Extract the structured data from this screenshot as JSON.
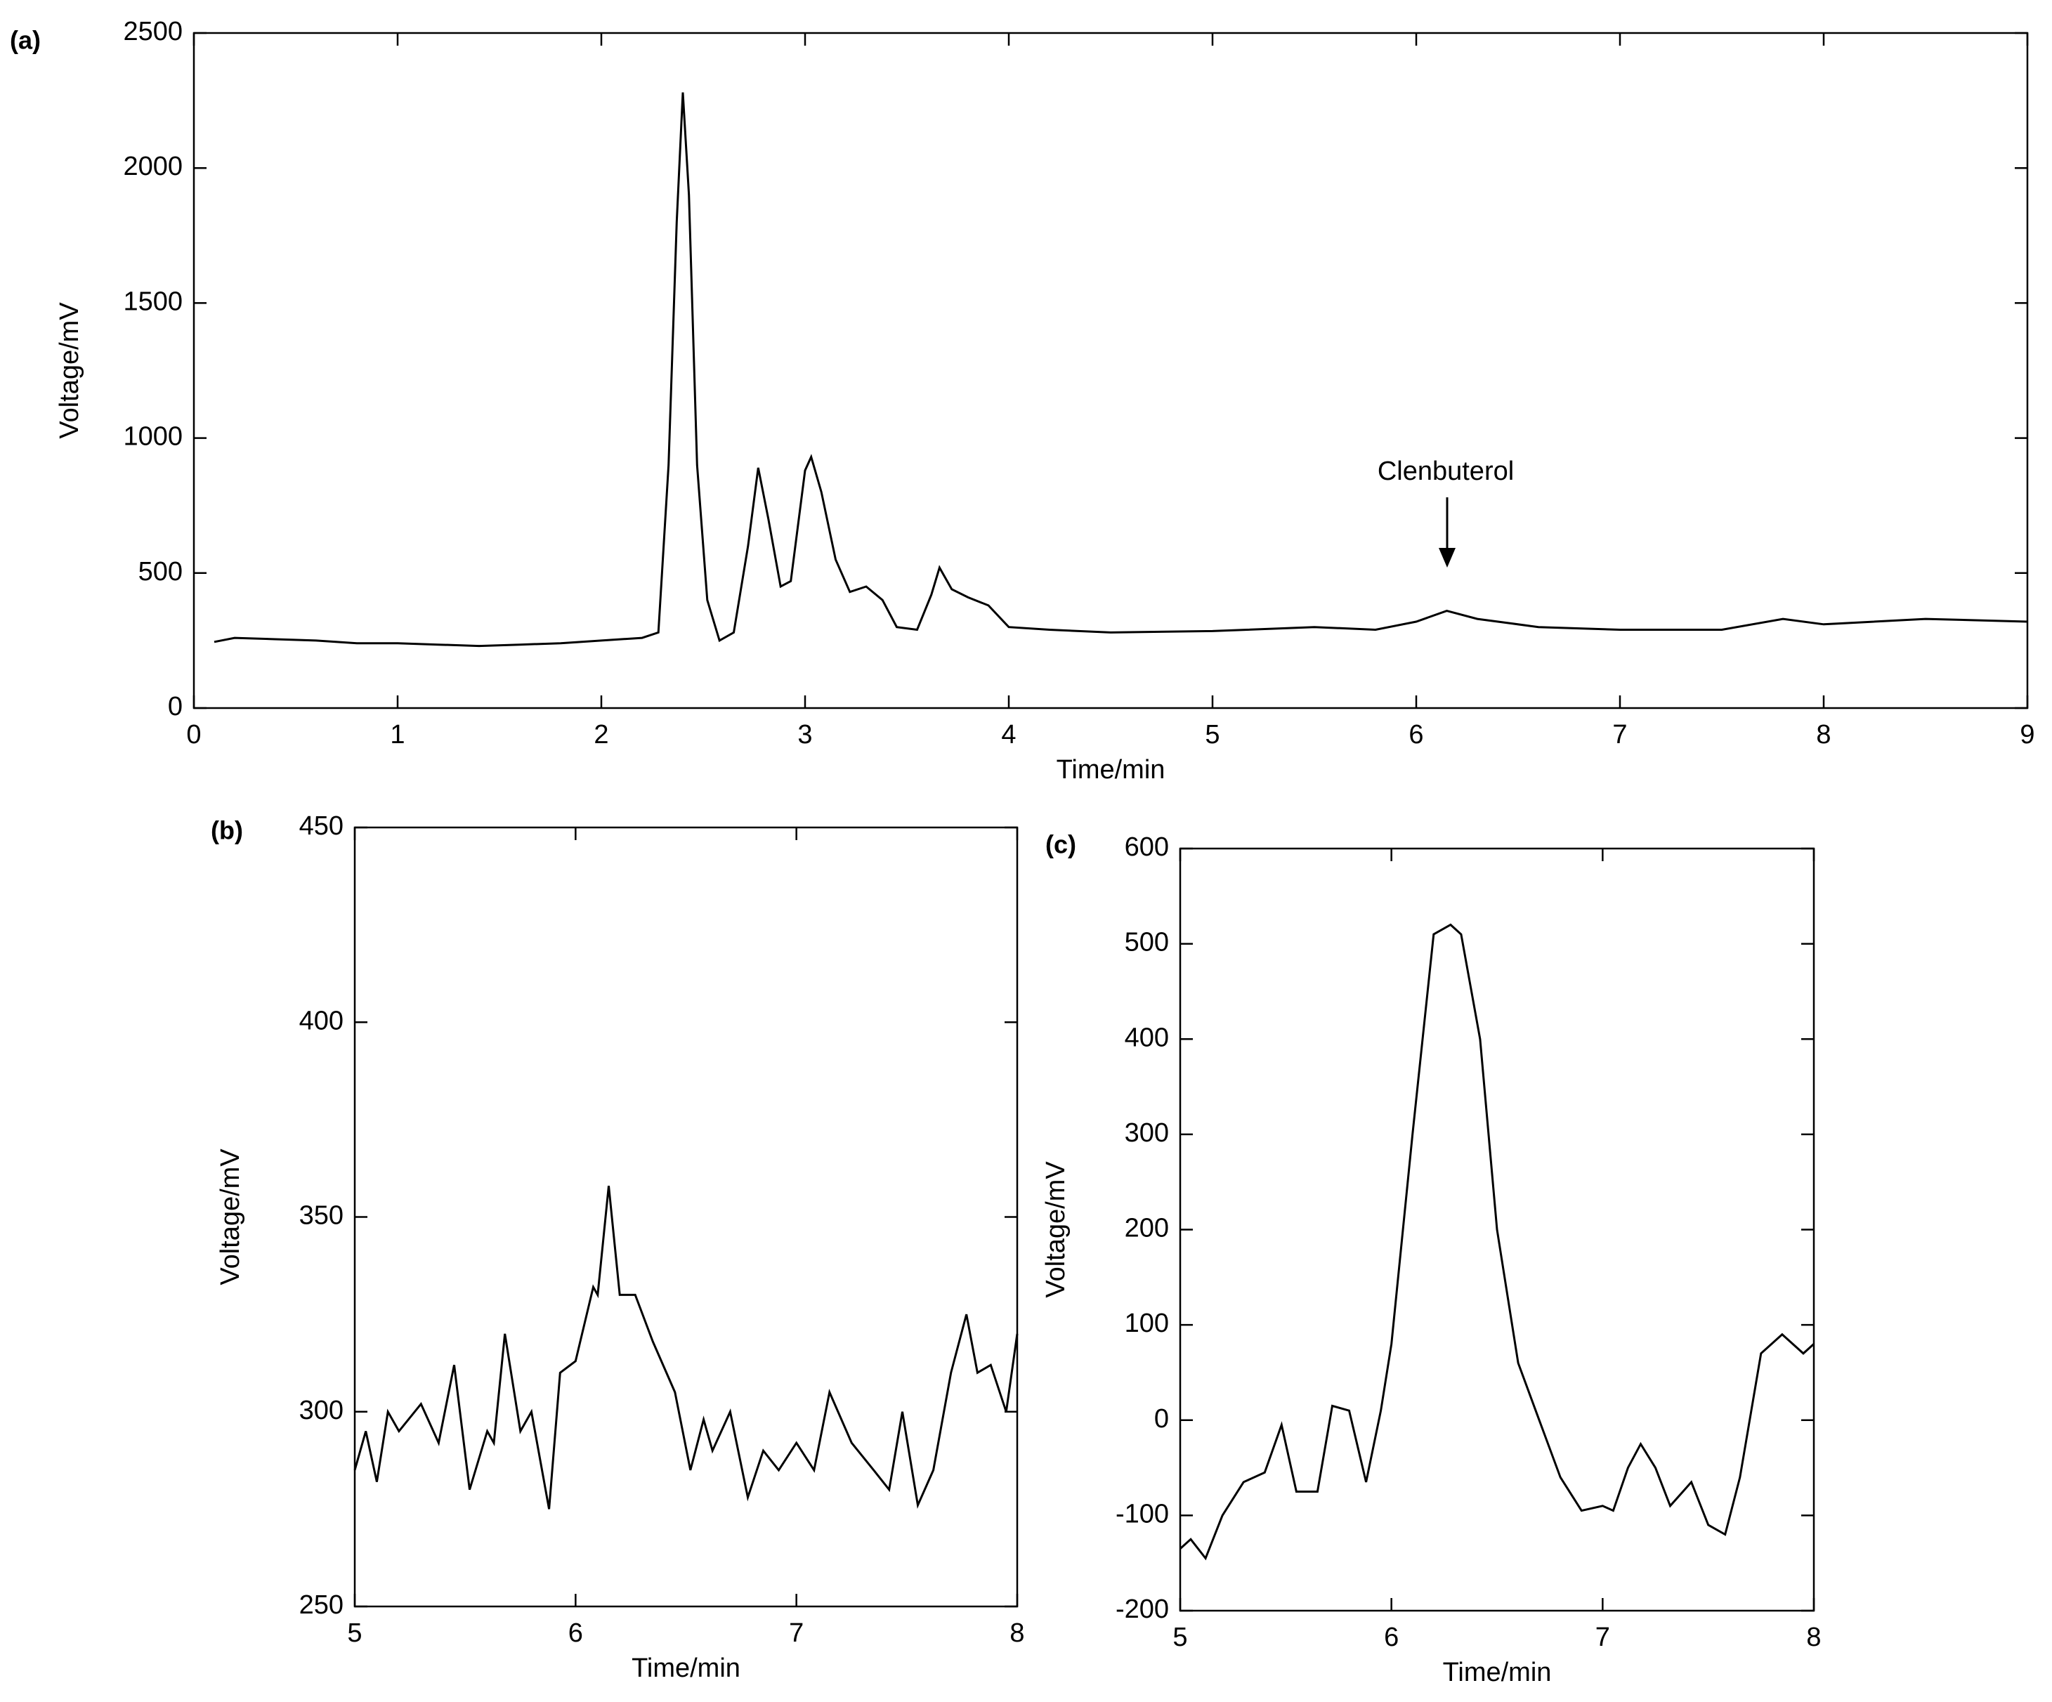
{
  "chart_data": [
    {
      "type": "line",
      "panel_label": "(a)",
      "x_label": "Time/min",
      "y_label": "Voltage/mV",
      "annotation": "Clenbuterol",
      "color": "#000000",
      "xlim": [
        0,
        9
      ],
      "ylim": [
        0,
        2500
      ],
      "xticks": [
        0,
        1,
        2,
        3,
        4,
        5,
        6,
        7,
        8,
        9
      ],
      "yticks": [
        0,
        500,
        1000,
        1500,
        2000,
        2500
      ],
      "grid": false,
      "x": [
        0.1,
        0.2,
        0.4,
        0.6,
        0.8,
        1.0,
        1.2,
        1.4,
        1.6,
        1.8,
        2.0,
        2.2,
        2.28,
        2.33,
        2.37,
        2.4,
        2.43,
        2.47,
        2.52,
        2.58,
        2.65,
        2.72,
        2.77,
        2.82,
        2.88,
        2.93,
        3.0,
        3.03,
        3.08,
        3.15,
        3.22,
        3.3,
        3.38,
        3.45,
        3.55,
        3.62,
        3.66,
        3.72,
        3.8,
        3.9,
        4.0,
        4.2,
        4.5,
        5.0,
        5.5,
        5.8,
        6.0,
        6.15,
        6.3,
        6.6,
        7.0,
        7.5,
        7.8,
        8.0,
        8.5,
        9.0
      ],
      "values": [
        245,
        260,
        255,
        250,
        240,
        240,
        235,
        230,
        235,
        240,
        250,
        260,
        280,
        900,
        1800,
        2280,
        1900,
        900,
        400,
        250,
        280,
        600,
        890,
        700,
        450,
        470,
        880,
        930,
        800,
        550,
        430,
        450,
        400,
        300,
        290,
        420,
        520,
        440,
        410,
        380,
        300,
        290,
        280,
        285,
        300,
        290,
        320,
        360,
        330,
        300,
        290,
        290,
        330,
        310,
        330,
        320
      ]
    },
    {
      "type": "line",
      "panel_label": "(b)",
      "x_label": "Time/min",
      "y_label": "Voltage/mV",
      "color": "#000000",
      "xlim": [
        5,
        8
      ],
      "ylim": [
        250,
        450
      ],
      "xticks": [
        5,
        6,
        7,
        8
      ],
      "yticks": [
        250,
        300,
        350,
        400,
        450
      ],
      "grid": false,
      "x": [
        5.0,
        5.05,
        5.1,
        5.15,
        5.2,
        5.3,
        5.38,
        5.45,
        5.52,
        5.6,
        5.63,
        5.68,
        5.75,
        5.8,
        5.88,
        5.93,
        6.0,
        6.08,
        6.1,
        6.15,
        6.2,
        6.27,
        6.35,
        6.45,
        6.52,
        6.58,
        6.62,
        6.7,
        6.78,
        6.85,
        6.92,
        7.0,
        7.08,
        7.15,
        7.25,
        7.35,
        7.42,
        7.48,
        7.55,
        7.62,
        7.7,
        7.77,
        7.82,
        7.88,
        7.95,
        8.0
      ],
      "values": [
        285,
        295,
        282,
        300,
        295,
        302,
        292,
        312,
        280,
        295,
        292,
        320,
        295,
        300,
        275,
        310,
        313,
        332,
        330,
        358,
        330,
        330,
        318,
        305,
        285,
        298,
        290,
        300,
        278,
        290,
        285,
        292,
        285,
        305,
        292,
        285,
        280,
        300,
        276,
        285,
        310,
        325,
        310,
        312,
        300,
        320
      ]
    },
    {
      "type": "line",
      "panel_label": "(c)",
      "x_label": "Time/min",
      "y_label": "Voltage/mV",
      "color": "#000000",
      "xlim": [
        5,
        8
      ],
      "ylim": [
        -200,
        600
      ],
      "xticks": [
        5,
        6,
        7,
        8
      ],
      "yticks": [
        -200,
        -100,
        0,
        100,
        200,
        300,
        400,
        500,
        600
      ],
      "grid": false,
      "x": [
        5.0,
        5.05,
        5.12,
        5.2,
        5.3,
        5.4,
        5.48,
        5.55,
        5.65,
        5.72,
        5.8,
        5.88,
        5.95,
        6.0,
        6.1,
        6.2,
        6.28,
        6.33,
        6.42,
        6.5,
        6.6,
        6.7,
        6.8,
        6.9,
        7.0,
        7.05,
        7.12,
        7.18,
        7.25,
        7.32,
        7.38,
        7.42,
        7.5,
        7.58,
        7.65,
        7.75,
        7.85,
        7.95,
        8.0
      ],
      "values": [
        -135,
        -125,
        -145,
        -100,
        -65,
        -55,
        -5,
        -75,
        -75,
        15,
        10,
        -65,
        10,
        80,
        300,
        510,
        520,
        510,
        400,
        200,
        60,
        0,
        -60,
        -95,
        -90,
        -95,
        -50,
        -25,
        -50,
        -90,
        -75,
        -65,
        -110,
        -120,
        -60,
        70,
        90,
        70,
        80
      ]
    }
  ]
}
